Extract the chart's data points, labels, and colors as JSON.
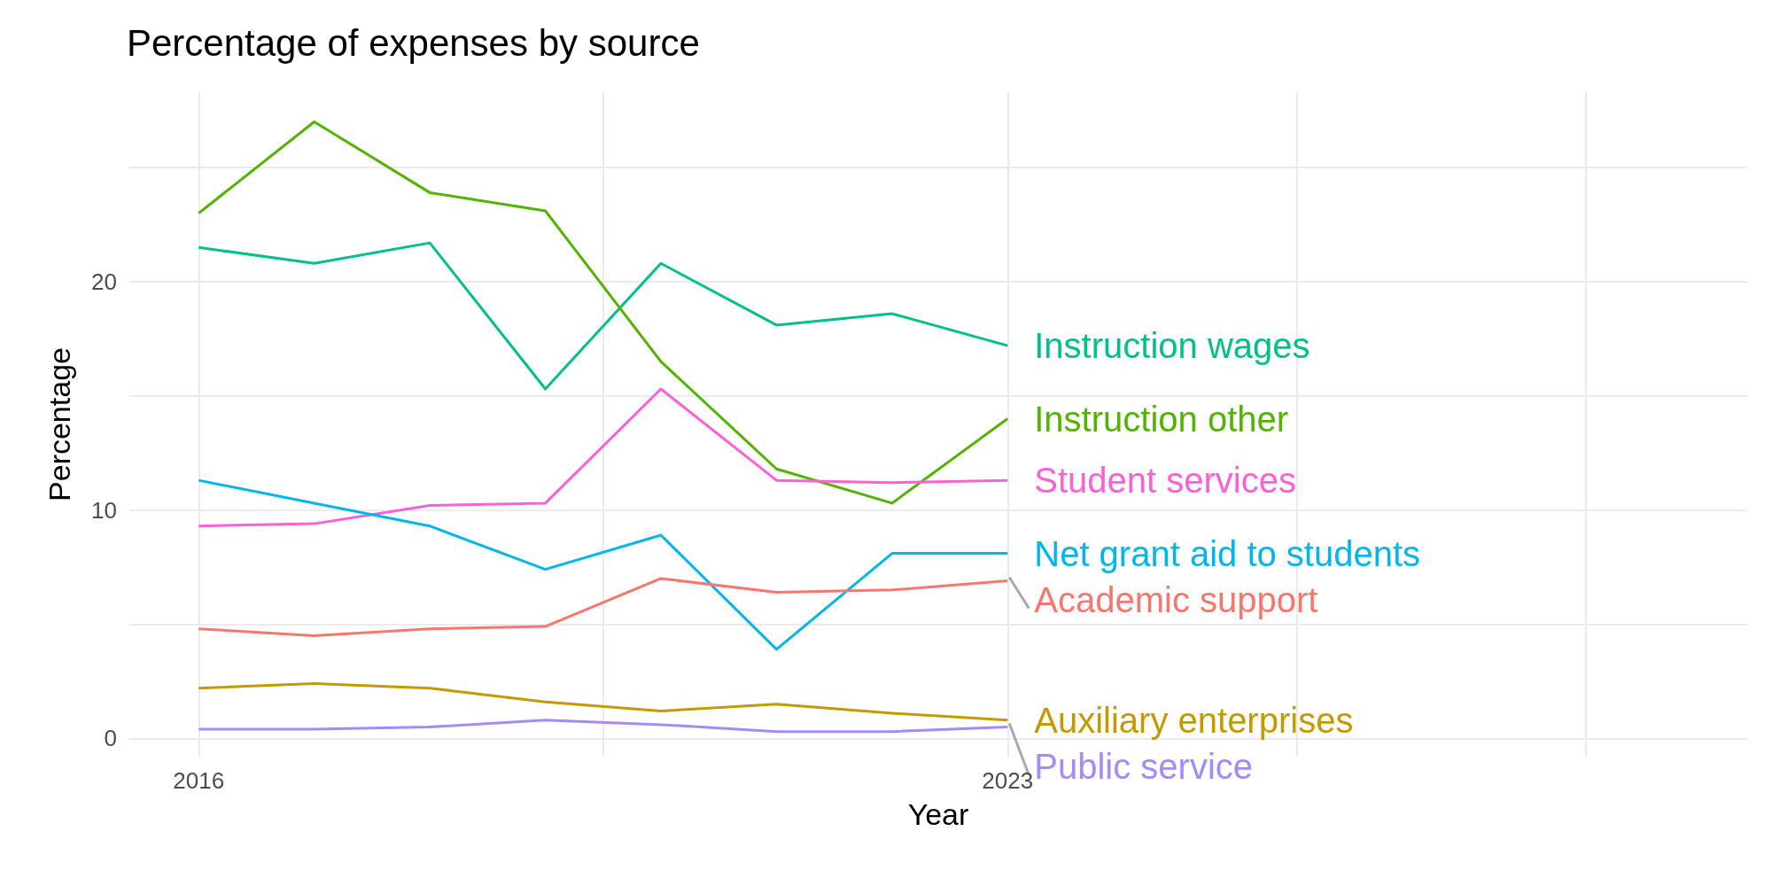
{
  "chart_data": {
    "type": "line",
    "title": "Percentage of expenses by source",
    "xlabel": "Year",
    "ylabel": "Percentage",
    "x": [
      2016,
      2017,
      2018,
      2019,
      2020,
      2021,
      2022,
      2023
    ],
    "xlim": [
      2015.4,
      2029.4
    ],
    "xticks": [
      2016,
      {
        "value": 2019.5,
        "label": null
      },
      2023,
      {
        "value": 2025.5,
        "label": null
      },
      {
        "value": 2028,
        "label": null
      }
    ],
    "ylim": [
      -0.8,
      28.3
    ],
    "yticks": [
      0,
      {
        "value": 5,
        "label": null
      },
      10,
      {
        "value": 15,
        "label": null
      },
      20,
      {
        "value": 25,
        "label": null
      }
    ],
    "grid": true,
    "legend": false,
    "marker": "none",
    "line_style": "solid",
    "series": [
      {
        "name": "Instruction wages",
        "color": "#00c08b",
        "values": [
          21.5,
          20.8,
          21.7,
          15.3,
          20.8,
          18.1,
          18.6,
          17.2
        ]
      },
      {
        "name": "Instruction other",
        "color": "#53b400",
        "values": [
          23.0,
          27.0,
          23.9,
          23.1,
          16.5,
          11.8,
          10.3,
          14.0
        ]
      },
      {
        "name": "Student services",
        "color": "#fb61d7",
        "values": [
          9.3,
          9.4,
          10.2,
          10.3,
          15.3,
          11.3,
          11.2,
          11.3
        ]
      },
      {
        "name": "Net grant aid to students",
        "color": "#00b6eb",
        "values": [
          11.3,
          10.3,
          9.3,
          7.4,
          8.9,
          3.9,
          8.1,
          8.1
        ]
      },
      {
        "name": "Academic support",
        "color": "#f8766d",
        "values": [
          4.8,
          4.5,
          4.8,
          4.9,
          7.0,
          6.4,
          6.5,
          6.9
        ]
      },
      {
        "name": "Auxiliary enterprises",
        "color": "#c49a00",
        "values": [
          2.2,
          2.4,
          2.2,
          1.6,
          1.2,
          1.5,
          1.1,
          0.8
        ]
      },
      {
        "name": "Public service",
        "color": "#a58aff",
        "values": [
          0.4,
          0.4,
          0.5,
          0.8,
          0.6,
          0.3,
          0.3,
          0.5
        ]
      }
    ]
  }
}
